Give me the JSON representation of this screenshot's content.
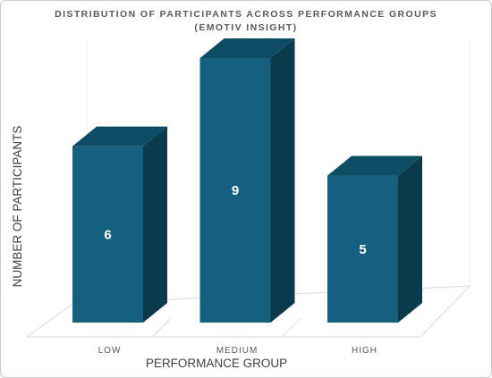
{
  "chart_data": {
    "type": "bar",
    "title_lines": [
      "DISTRIBUTION OF PARTICIPANTS ACROSS PERFORMANCE GROUPS",
      "(EMOTIV INSIGHT)"
    ],
    "categories": [
      "LOW",
      "MEDIUM",
      "HIGH"
    ],
    "values": [
      6,
      9,
      5
    ],
    "xlabel": "PERFORMANCE GROUP",
    "ylabel": "NUMBER OF PARTICIPANTS",
    "ylim": [
      0,
      9
    ],
    "three_d": true,
    "grid": false,
    "data_labels": true,
    "colors": {
      "bar_front": "#15607f",
      "bar_side": "#0b3a4d",
      "bar_top": "#0e4c63",
      "floor_line": "#d9d9d9",
      "label": "#ffffff"
    }
  }
}
